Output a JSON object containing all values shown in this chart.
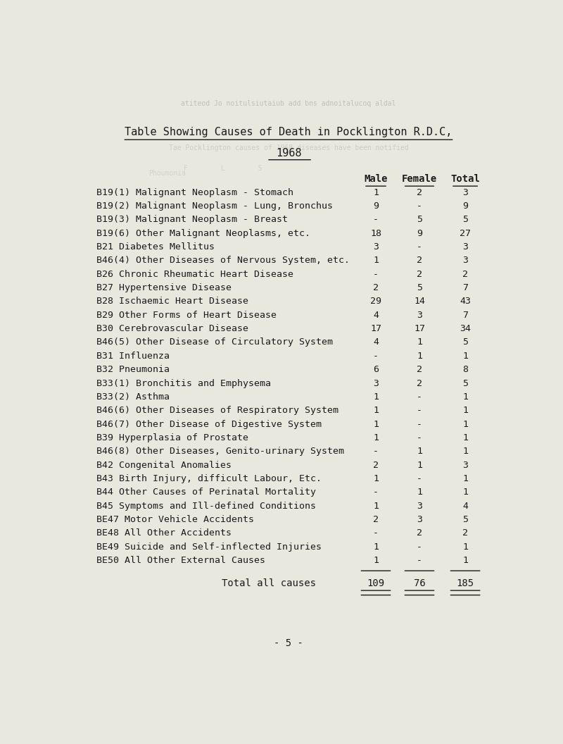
{
  "title": "Table Showing Causes of Death in Pocklington R.D.C,",
  "subtitle": "1968",
  "col_headers": [
    "Male",
    "Female",
    "Total"
  ],
  "rows": [
    {
      "code": "B19(1)",
      "description": "Malignant Neoplasm - Stomach",
      "male": "1",
      "female": "2",
      "total": "3"
    },
    {
      "code": "B19(2)",
      "description": "Malignant Neoplasm - Lung, Bronchus",
      "male": "9",
      "female": "-",
      "total": "9"
    },
    {
      "code": "B19(3)",
      "description": "Malignant Neoplasm - Breast",
      "male": "-",
      "female": "5",
      "total": "5"
    },
    {
      "code": "B19(6)",
      "description": "Other Malignant Neoplasms, etc.",
      "male": "18",
      "female": "9",
      "total": "27"
    },
    {
      "code": "B21",
      "description": "Diabetes Mellitus",
      "male": "3",
      "female": "-",
      "total": "3"
    },
    {
      "code": "B46(4)",
      "description": "Other Diseases of Nervous System, etc.",
      "male": "1",
      "female": "2",
      "total": "3"
    },
    {
      "code": "B26",
      "description": "Chronic Rheumatic Heart Disease",
      "male": "-",
      "female": "2",
      "total": "2"
    },
    {
      "code": "B27",
      "description": "Hypertensive Disease",
      "male": "2",
      "female": "5",
      "total": "7"
    },
    {
      "code": "B28",
      "description": "Ischaemic Heart Disease",
      "male": "29",
      "female": "14",
      "total": "43"
    },
    {
      "code": "B29",
      "description": "Other Forms of Heart Disease",
      "male": "4",
      "female": "3",
      "total": "7"
    },
    {
      "code": "B30",
      "description": "Cerebrovascular Disease",
      "male": "17",
      "female": "17",
      "total": "34"
    },
    {
      "code": "B46(5)",
      "description": "Other Disease of Circulatory System",
      "male": "4",
      "female": "1",
      "total": "5"
    },
    {
      "code": "B31",
      "description": "Influenza",
      "male": "-",
      "female": "1",
      "total": "1"
    },
    {
      "code": "B32",
      "description": "Pneumonia",
      "male": "6",
      "female": "2",
      "total": "8"
    },
    {
      "code": "B33(1)",
      "description": "Bronchitis and Emphysema",
      "male": "3",
      "female": "2",
      "total": "5"
    },
    {
      "code": "B33(2)",
      "description": "Asthma",
      "male": "1",
      "female": "-",
      "total": "1"
    },
    {
      "code": "B46(6)",
      "description": "Other Diseases of Respiratory System",
      "male": "1",
      "female": "-",
      "total": "1"
    },
    {
      "code": "B46(7)",
      "description": "Other Disease of Digestive System",
      "male": "1",
      "female": "-",
      "total": "1"
    },
    {
      "code": "B39",
      "description": "Hyperplasia of Prostate",
      "male": "1",
      "female": "-",
      "total": "1"
    },
    {
      "code": "B46(8)",
      "description": "Other Diseases, Genito-urinary System",
      "male": "-",
      "female": "1",
      "total": "1"
    },
    {
      "code": "B42",
      "description": "Congenital Anomalies",
      "male": "2",
      "female": "1",
      "total": "3"
    },
    {
      "code": "B43",
      "description": "Birth Injury, difficult Labour, Etc.",
      "male": "1",
      "female": "-",
      "total": "1"
    },
    {
      "code": "B44",
      "description": "Other Causes of Perinatal Mortality",
      "male": "-",
      "female": "1",
      "total": "1"
    },
    {
      "code": "B45",
      "description": "Symptoms and Ill-defined Conditions",
      "male": "1",
      "female": "3",
      "total": "4"
    },
    {
      "code": "BE47",
      "description": "Motor Vehicle Accidents",
      "male": "2",
      "female": "3",
      "total": "5"
    },
    {
      "code": "BE48",
      "description": "All Other Accidents",
      "male": "-",
      "female": "2",
      "total": "2"
    },
    {
      "code": "BE49",
      "description": "Suicide and Self-inflected Injuries",
      "male": "1",
      "female": "-",
      "total": "1"
    },
    {
      "code": "BE50",
      "description": "All Other External Causes",
      "male": "1",
      "female": "-",
      "total": "1"
    }
  ],
  "total_row": {
    "label": "Total all causes",
    "male": "109",
    "female": "76",
    "total": "185"
  },
  "footer": "- 5 -",
  "bg_color": "#e8e8df",
  "text_color": "#1a1a1a",
  "font_family": "monospace",
  "title_fontsize": 11,
  "header_fontsize": 10,
  "row_fontsize": 9.5,
  "total_fontsize": 10
}
